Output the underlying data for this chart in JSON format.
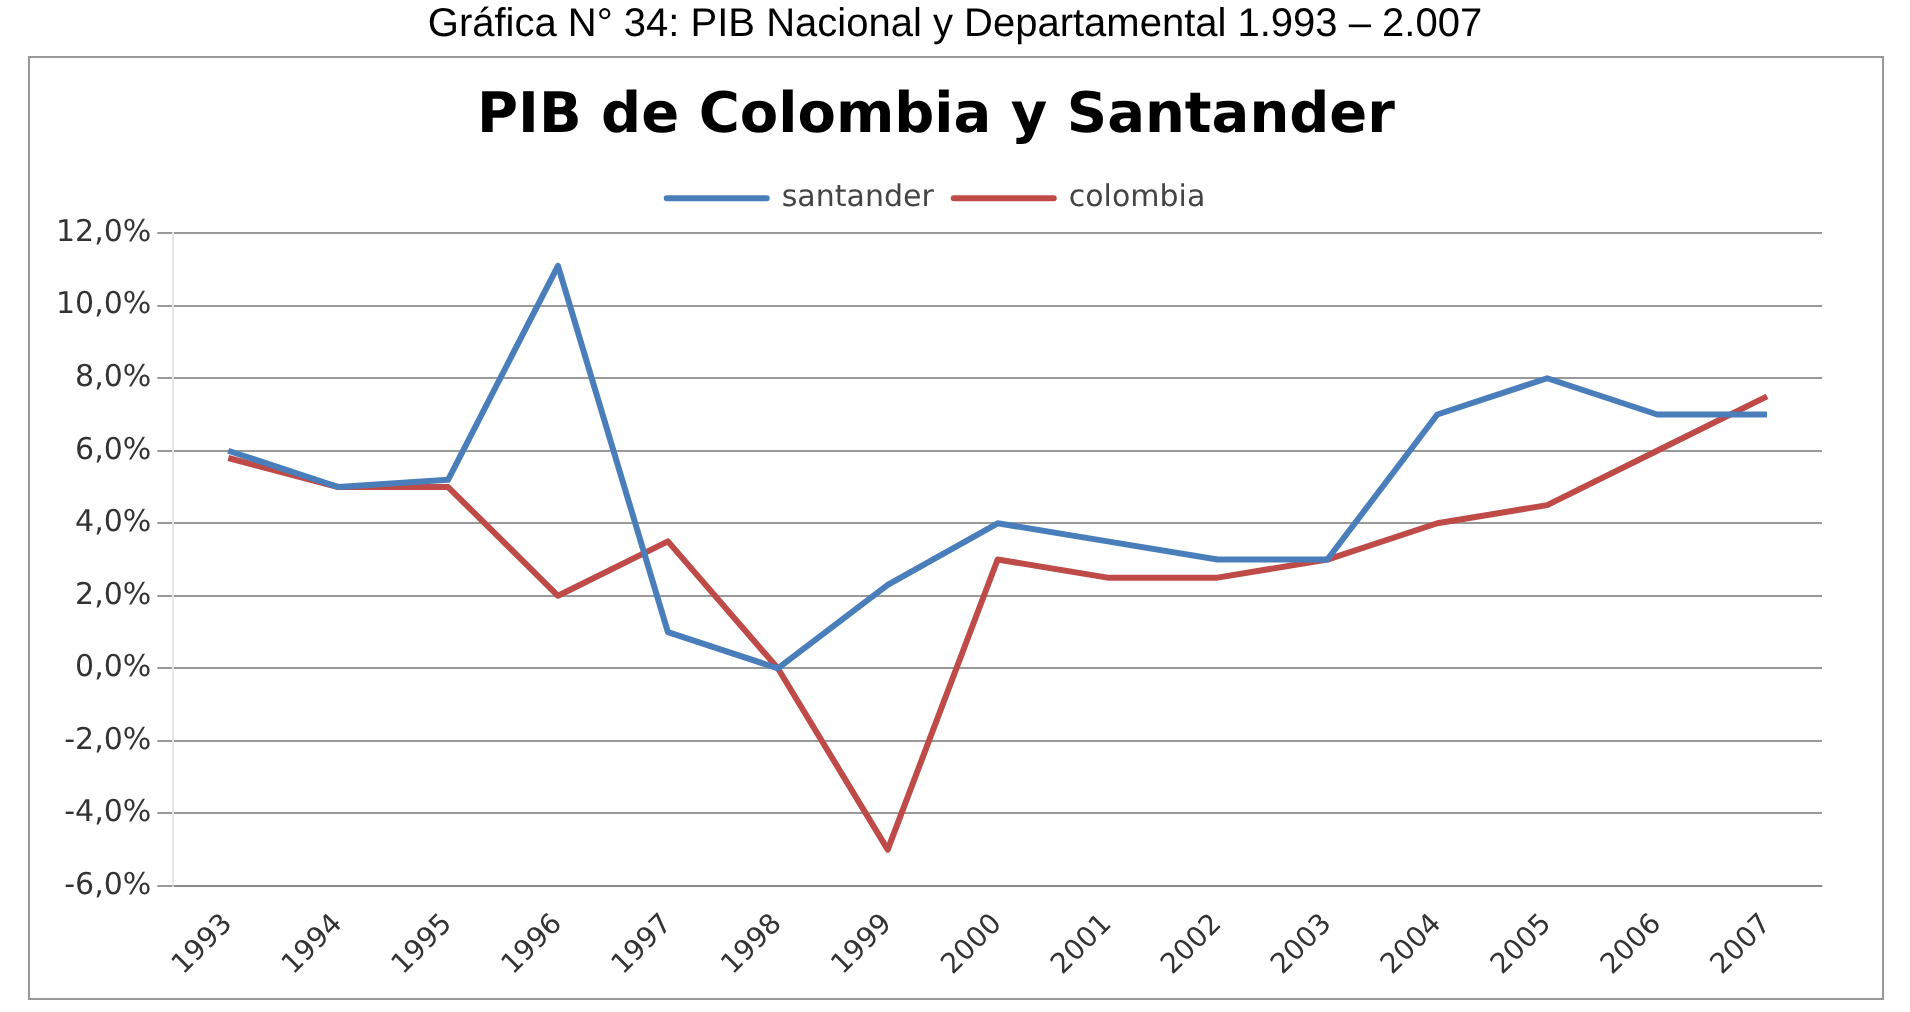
{
  "chart_data": {
    "type": "line",
    "title": "PIB de Colombia y Santander",
    "subtitle": "Gráfica N° 34: PIB Nacional y Departamental 1.993 – 2.007",
    "categories": [
      "1993",
      "1994",
      "1995",
      "1996",
      "1997",
      "1998",
      "1999",
      "2000",
      "2001",
      "2002",
      "2003",
      "2004",
      "2005",
      "2006",
      "2007"
    ],
    "series": [
      {
        "name": "santander",
        "color": "#4a7ebb",
        "values": [
          6.0,
          5.0,
          5.2,
          11.1,
          1.0,
          0.0,
          2.3,
          4.0,
          3.5,
          3.0,
          3.0,
          7.0,
          8.0,
          7.0,
          7.0
        ]
      },
      {
        "name": "colombia",
        "color": "#be4b48",
        "values": [
          5.8,
          5.0,
          5.0,
          2.0,
          3.5,
          0.0,
          -5.0,
          3.0,
          2.5,
          2.5,
          3.0,
          4.0,
          4.5,
          6.0,
          7.5
        ]
      }
    ],
    "ylim": [
      -6,
      12
    ],
    "yticks": [
      {
        "value": -6,
        "label": "-6,0%"
      },
      {
        "value": -4,
        "label": "-4,0%"
      },
      {
        "value": -2,
        "label": "-2,0%"
      },
      {
        "value": 0,
        "label": "0,0%"
      },
      {
        "value": 2,
        "label": "2,0%"
      },
      {
        "value": 4,
        "label": "4,0%"
      },
      {
        "value": 6,
        "label": "6,0%"
      },
      {
        "value": 8,
        "label": "8,0%"
      },
      {
        "value": 10,
        "label": "10,0%"
      },
      {
        "value": 12,
        "label": "12,0%"
      }
    ],
    "grid": "y",
    "legend": "top",
    "marker": "none",
    "line_style": "solid"
  }
}
